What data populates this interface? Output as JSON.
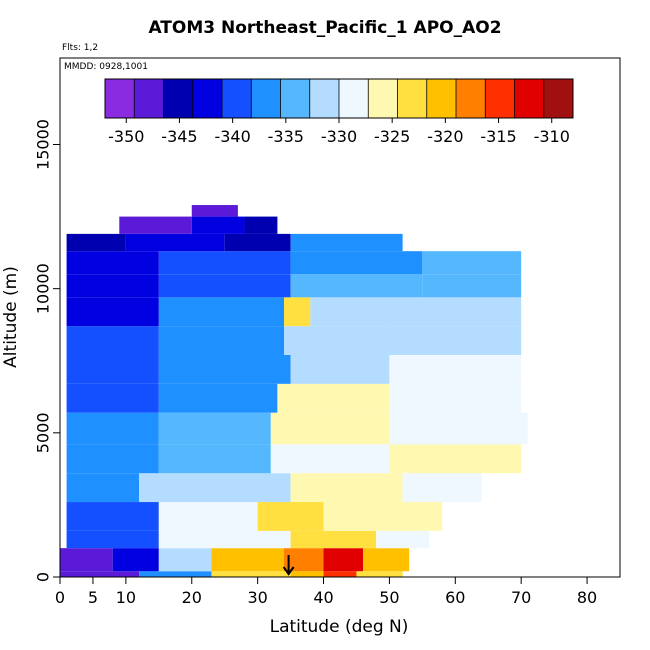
{
  "chart_data": {
    "type": "heatmap",
    "title": "ATOM3 Northeast_Pacific_1 APO_AO2",
    "notes": [
      "Flts: 1,2",
      "MMDD: 0928,1001"
    ],
    "xlabel": "Latitude (deg N)",
    "ylabel": "Altitude (m)",
    "xlim": [
      0,
      85
    ],
    "ylim": [
      0,
      18000
    ],
    "xticks": [
      0,
      5,
      10,
      20,
      30,
      40,
      50,
      60,
      70,
      80
    ],
    "yticks": [
      0,
      5000,
      10000,
      15000
    ],
    "colorbar": {
      "min": -352,
      "max": -308,
      "ticks": [
        -350,
        -345,
        -340,
        -335,
        -330,
        -325,
        -320,
        -315,
        -310
      ],
      "colors": [
        "#8a2be2",
        "#5a1ad8",
        "#0000b0",
        "#0000e0",
        "#1450ff",
        "#1e90ff",
        "#55b8ff",
        "#b4dcff",
        "#f0f8ff",
        "#fff8b0",
        "#ffe040",
        "#ffc000",
        "#ff8000",
        "#ff3000",
        "#e00000",
        "#a01010"
      ]
    },
    "marker_latitude": 34.7,
    "rows": [
      {
        "y": [
          0,
          200
        ],
        "x": [
          0,
          12
        ],
        "v": -347
      },
      {
        "y": [
          0,
          200
        ],
        "x": [
          12,
          23
        ],
        "v": -336
      },
      {
        "y": [
          0,
          200
        ],
        "x": [
          23,
          35
        ],
        "v": -324
      },
      {
        "y": [
          0,
          200
        ],
        "x": [
          35,
          40
        ],
        "v": -320
      },
      {
        "y": [
          0,
          200
        ],
        "x": [
          40,
          45
        ],
        "v": -314
      },
      {
        "y": [
          0,
          200
        ],
        "x": [
          45,
          52
        ],
        "v": -322
      },
      {
        "y": [
          200,
          1000
        ],
        "x": [
          0,
          8
        ],
        "v": -347
      },
      {
        "y": [
          200,
          1000
        ],
        "x": [
          8,
          15
        ],
        "v": -342
      },
      {
        "y": [
          200,
          1000
        ],
        "x": [
          15,
          23
        ],
        "v": -331
      },
      {
        "y": [
          200,
          1000
        ],
        "x": [
          23,
          34
        ],
        "v": -320
      },
      {
        "y": [
          200,
          1000
        ],
        "x": [
          34,
          40
        ],
        "v": -317
      },
      {
        "y": [
          200,
          1000
        ],
        "x": [
          40,
          46
        ],
        "v": -312
      },
      {
        "y": [
          200,
          1000
        ],
        "x": [
          46,
          53
        ],
        "v": -320
      },
      {
        "y": [
          1000,
          1600
        ],
        "x": [
          1,
          15
        ],
        "v": -339
      },
      {
        "y": [
          1000,
          1600
        ],
        "x": [
          15,
          35
        ],
        "v": -328
      },
      {
        "y": [
          1000,
          1600
        ],
        "x": [
          35,
          48
        ],
        "v": -324
      },
      {
        "y": [
          1000,
          1600
        ],
        "x": [
          48,
          56
        ],
        "v": -328
      },
      {
        "y": [
          1600,
          2600
        ],
        "x": [
          1,
          15
        ],
        "v": -340
      },
      {
        "y": [
          1600,
          2600
        ],
        "x": [
          15,
          30
        ],
        "v": -330
      },
      {
        "y": [
          1600,
          2600
        ],
        "x": [
          30,
          40
        ],
        "v": -324
      },
      {
        "y": [
          1600,
          2600
        ],
        "x": [
          40,
          58
        ],
        "v": -327
      },
      {
        "y": [
          2600,
          3600
        ],
        "x": [
          1,
          12
        ],
        "v": -338
      },
      {
        "y": [
          2600,
          3600
        ],
        "x": [
          12,
          35
        ],
        "v": -332
      },
      {
        "y": [
          2600,
          3600
        ],
        "x": [
          35,
          52
        ],
        "v": -327
      },
      {
        "y": [
          2600,
          3600
        ],
        "x": [
          52,
          64
        ],
        "v": -328
      },
      {
        "y": [
          3600,
          4600
        ],
        "x": [
          1,
          15
        ],
        "v": -337
      },
      {
        "y": [
          3600,
          4600
        ],
        "x": [
          15,
          32
        ],
        "v": -333
      },
      {
        "y": [
          3600,
          4600
        ],
        "x": [
          32,
          50
        ],
        "v": -328
      },
      {
        "y": [
          3600,
          4600
        ],
        "x": [
          50,
          70
        ],
        "v": -327
      },
      {
        "y": [
          4600,
          5700
        ],
        "x": [
          1,
          15
        ],
        "v": -338
      },
      {
        "y": [
          4600,
          5700
        ],
        "x": [
          15,
          32
        ],
        "v": -335
      },
      {
        "y": [
          4600,
          5700
        ],
        "x": [
          32,
          50
        ],
        "v": -326
      },
      {
        "y": [
          4600,
          5700
        ],
        "x": [
          50,
          71
        ],
        "v": -328
      },
      {
        "y": [
          5700,
          6700
        ],
        "x": [
          1,
          15
        ],
        "v": -339
      },
      {
        "y": [
          5700,
          6700
        ],
        "x": [
          15,
          33
        ],
        "v": -336
      },
      {
        "y": [
          5700,
          6700
        ],
        "x": [
          33,
          50
        ],
        "v": -327
      },
      {
        "y": [
          5700,
          6700
        ],
        "x": [
          50,
          70
        ],
        "v": -329
      },
      {
        "y": [
          6700,
          7700
        ],
        "x": [
          1,
          15
        ],
        "v": -340
      },
      {
        "y": [
          6700,
          7700
        ],
        "x": [
          15,
          35
        ],
        "v": -337
      },
      {
        "y": [
          6700,
          7700
        ],
        "x": [
          35,
          50
        ],
        "v": -331
      },
      {
        "y": [
          6700,
          7700
        ],
        "x": [
          50,
          70
        ],
        "v": -330
      },
      {
        "y": [
          7700,
          8700
        ],
        "x": [
          1,
          15
        ],
        "v": -341
      },
      {
        "y": [
          7700,
          8700
        ],
        "x": [
          15,
          34
        ],
        "v": -338
      },
      {
        "y": [
          7700,
          8700
        ],
        "x": [
          34,
          50
        ],
        "v": -332
      },
      {
        "y": [
          7700,
          8700
        ],
        "x": [
          50,
          70
        ],
        "v": -331
      },
      {
        "y": [
          8700,
          9700
        ],
        "x": [
          1,
          15
        ],
        "v": -342
      },
      {
        "y": [
          8700,
          9700
        ],
        "x": [
          15,
          34
        ],
        "v": -338
      },
      {
        "y": [
          8700,
          9700
        ],
        "x": [
          34,
          38
        ],
        "v": -324
      },
      {
        "y": [
          8700,
          9700
        ],
        "x": [
          38,
          70
        ],
        "v": -331
      },
      {
        "y": [
          9700,
          10500
        ],
        "x": [
          1,
          15
        ],
        "v": -343
      },
      {
        "y": [
          9700,
          10500
        ],
        "x": [
          15,
          35
        ],
        "v": -339
      },
      {
        "y": [
          9700,
          10500
        ],
        "x": [
          35,
          55
        ],
        "v": -334
      },
      {
        "y": [
          9700,
          10500
        ],
        "x": [
          55,
          70
        ],
        "v": -333
      },
      {
        "y": [
          10500,
          11300
        ],
        "x": [
          1,
          15
        ],
        "v": -343
      },
      {
        "y": [
          10500,
          11300
        ],
        "x": [
          15,
          35
        ],
        "v": -341
      },
      {
        "y": [
          10500,
          11300
        ],
        "x": [
          35,
          55
        ],
        "v": -337
      },
      {
        "y": [
          10500,
          11300
        ],
        "x": [
          55,
          70
        ],
        "v": -335
      },
      {
        "y": [
          11300,
          11900
        ],
        "x": [
          1,
          10
        ],
        "v": -346
      },
      {
        "y": [
          11300,
          11900
        ],
        "x": [
          10,
          25
        ],
        "v": -343
      },
      {
        "y": [
          11300,
          11900
        ],
        "x": [
          25,
          35
        ],
        "v": -346
      },
      {
        "y": [
          11300,
          11900
        ],
        "x": [
          35,
          52
        ],
        "v": -338
      },
      {
        "y": [
          11900,
          12500
        ],
        "x": [
          9,
          20
        ],
        "v": -347
      },
      {
        "y": [
          11900,
          12500
        ],
        "x": [
          20,
          28
        ],
        "v": -342
      },
      {
        "y": [
          11900,
          12500
        ],
        "x": [
          28,
          33
        ],
        "v": -346
      },
      {
        "y": [
          12500,
          12900
        ],
        "x": [
          20,
          27
        ],
        "v": -347
      }
    ]
  }
}
